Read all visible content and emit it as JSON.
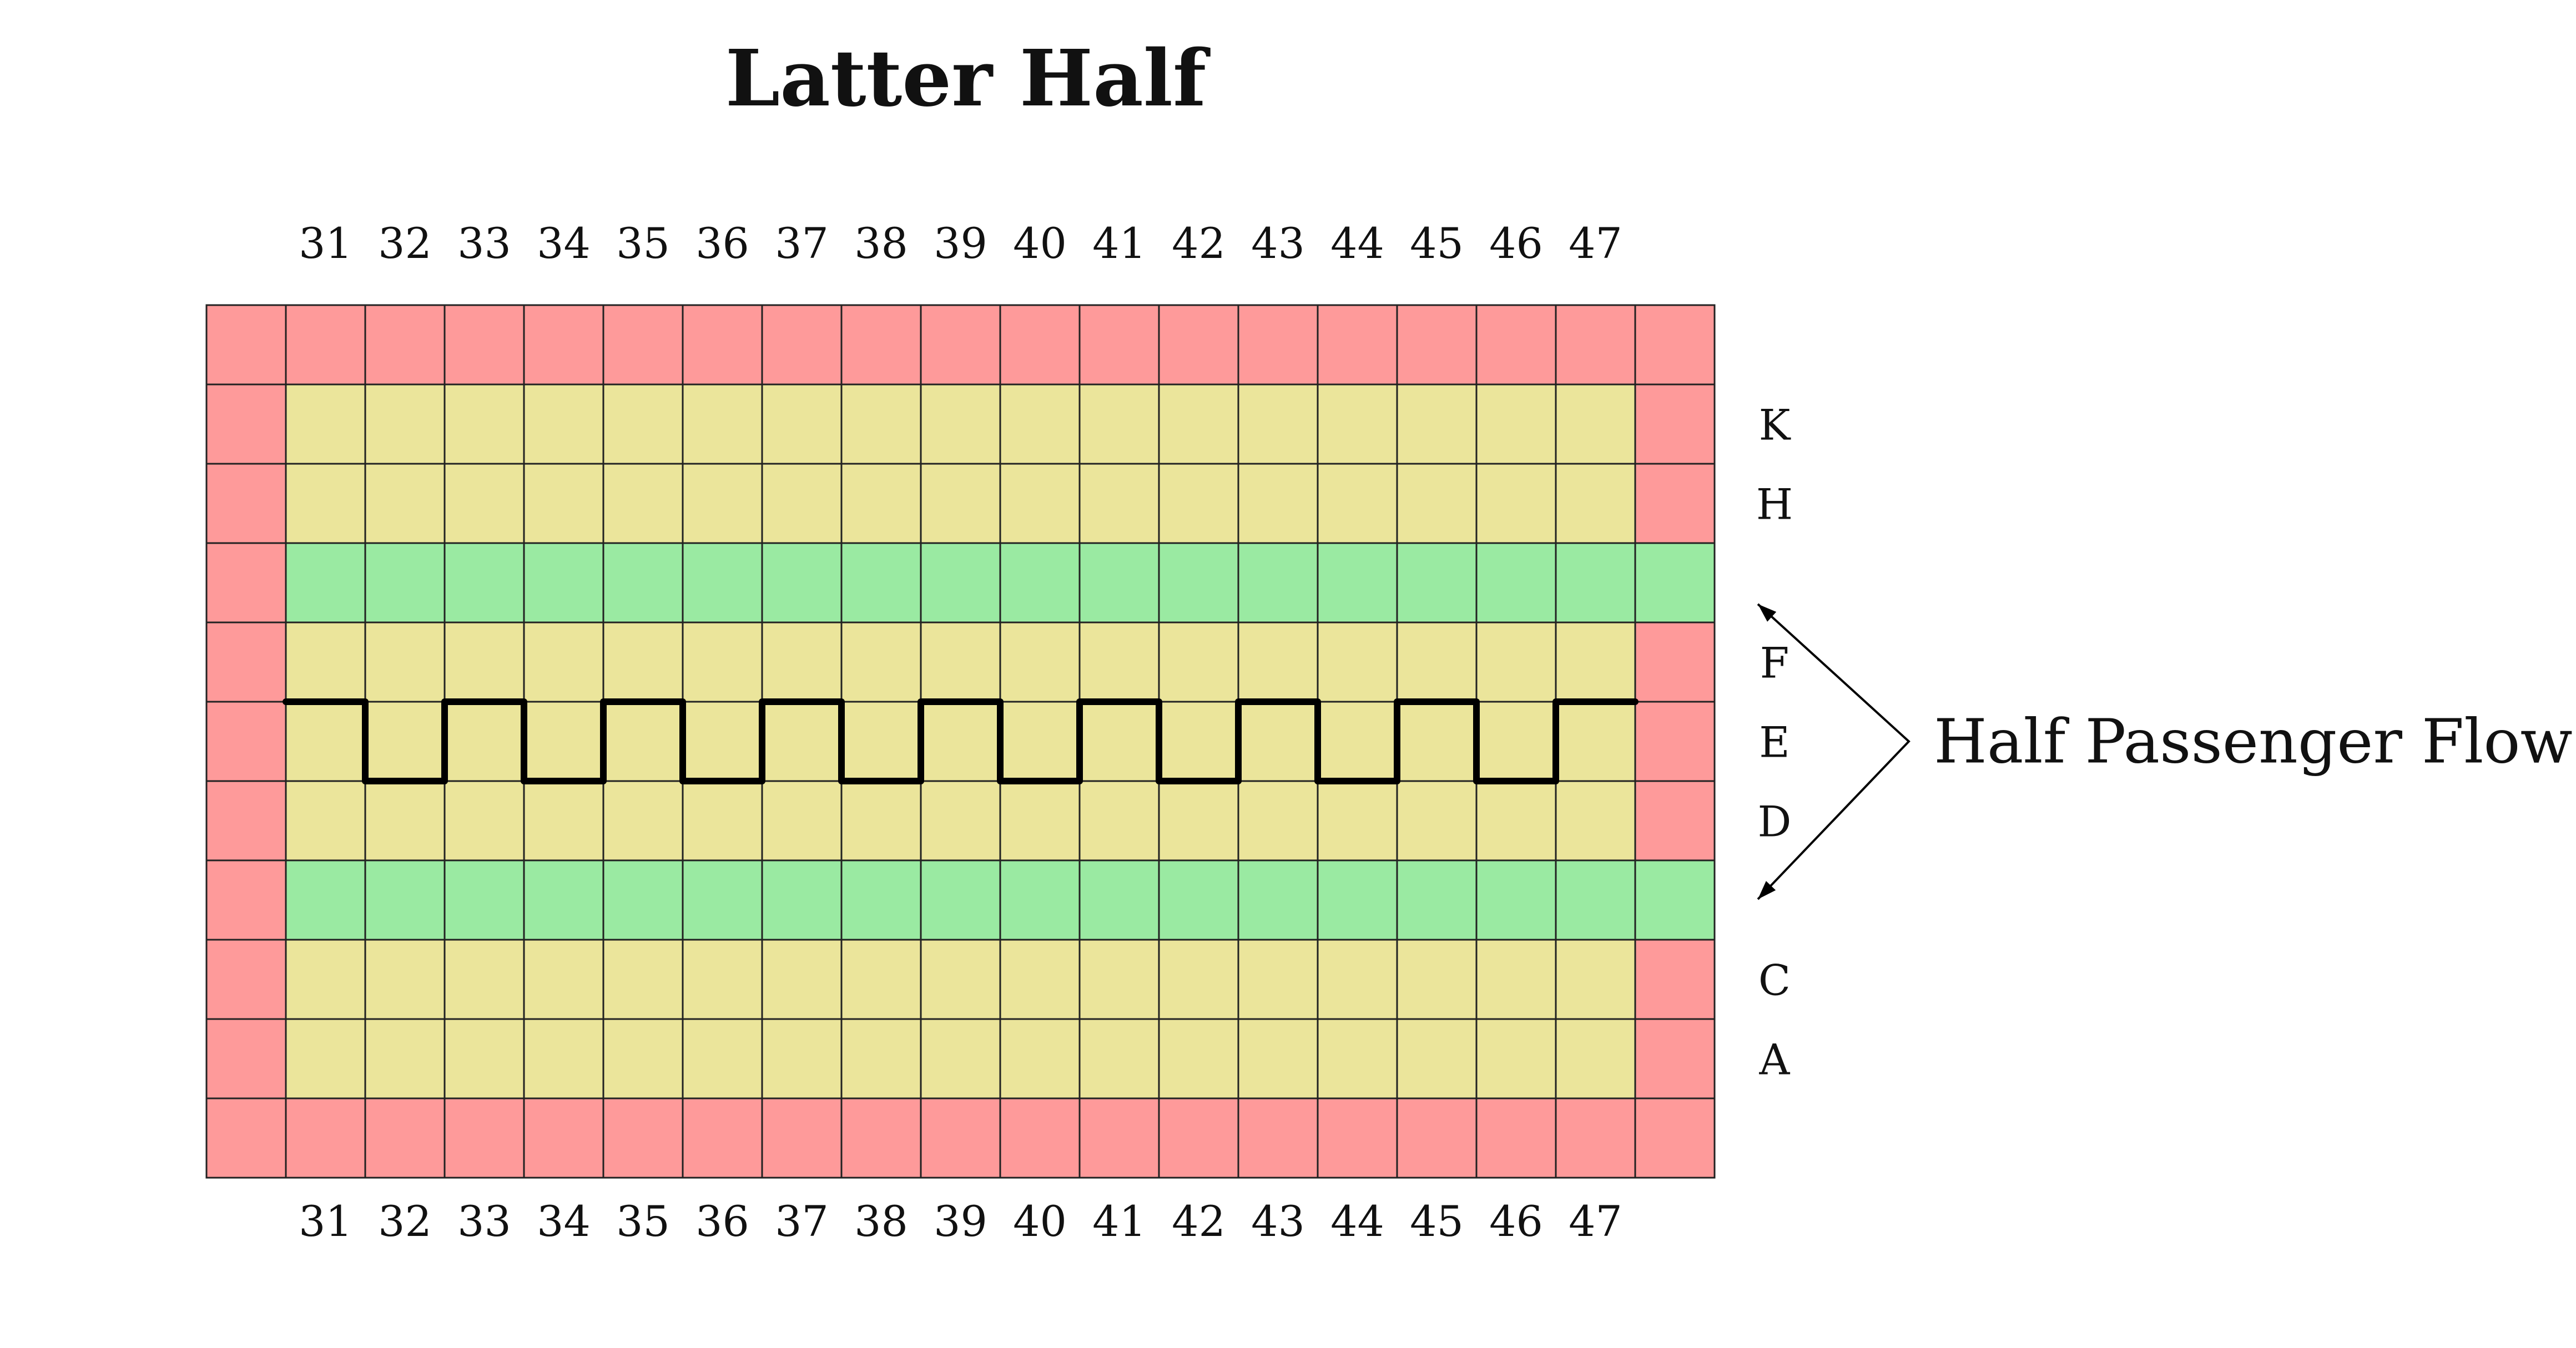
{
  "title": "Latter Half",
  "columns": [
    "31",
    "32",
    "33",
    "34",
    "35",
    "36",
    "37",
    "38",
    "39",
    "40",
    "41",
    "42",
    "43",
    "44",
    "45",
    "46",
    "47"
  ],
  "rows": [
    {
      "type": "wall",
      "label": ""
    },
    {
      "type": "seat",
      "label": "K"
    },
    {
      "type": "seat",
      "label": "H"
    },
    {
      "type": "aisle",
      "label": ""
    },
    {
      "type": "seat",
      "label": "F"
    },
    {
      "type": "seat",
      "label": "E"
    },
    {
      "type": "seat",
      "label": "D"
    },
    {
      "type": "aisle",
      "label": ""
    },
    {
      "type": "seat",
      "label": "C"
    },
    {
      "type": "seat",
      "label": "A"
    },
    {
      "type": "wall",
      "label": ""
    }
  ],
  "flow": {
    "label": "Half Passenger Flow",
    "path_rows": [
      "F",
      "E",
      "F",
      "E",
      "F",
      "E",
      "F",
      "E",
      "F",
      "E",
      "F",
      "E",
      "F",
      "E",
      "F",
      "E",
      "F"
    ]
  },
  "colors": {
    "wall": "#fe9a9a",
    "seat": "#ebe59b",
    "aisle": "#9aeaa2",
    "line": "#000000",
    "text": "#111111"
  }
}
